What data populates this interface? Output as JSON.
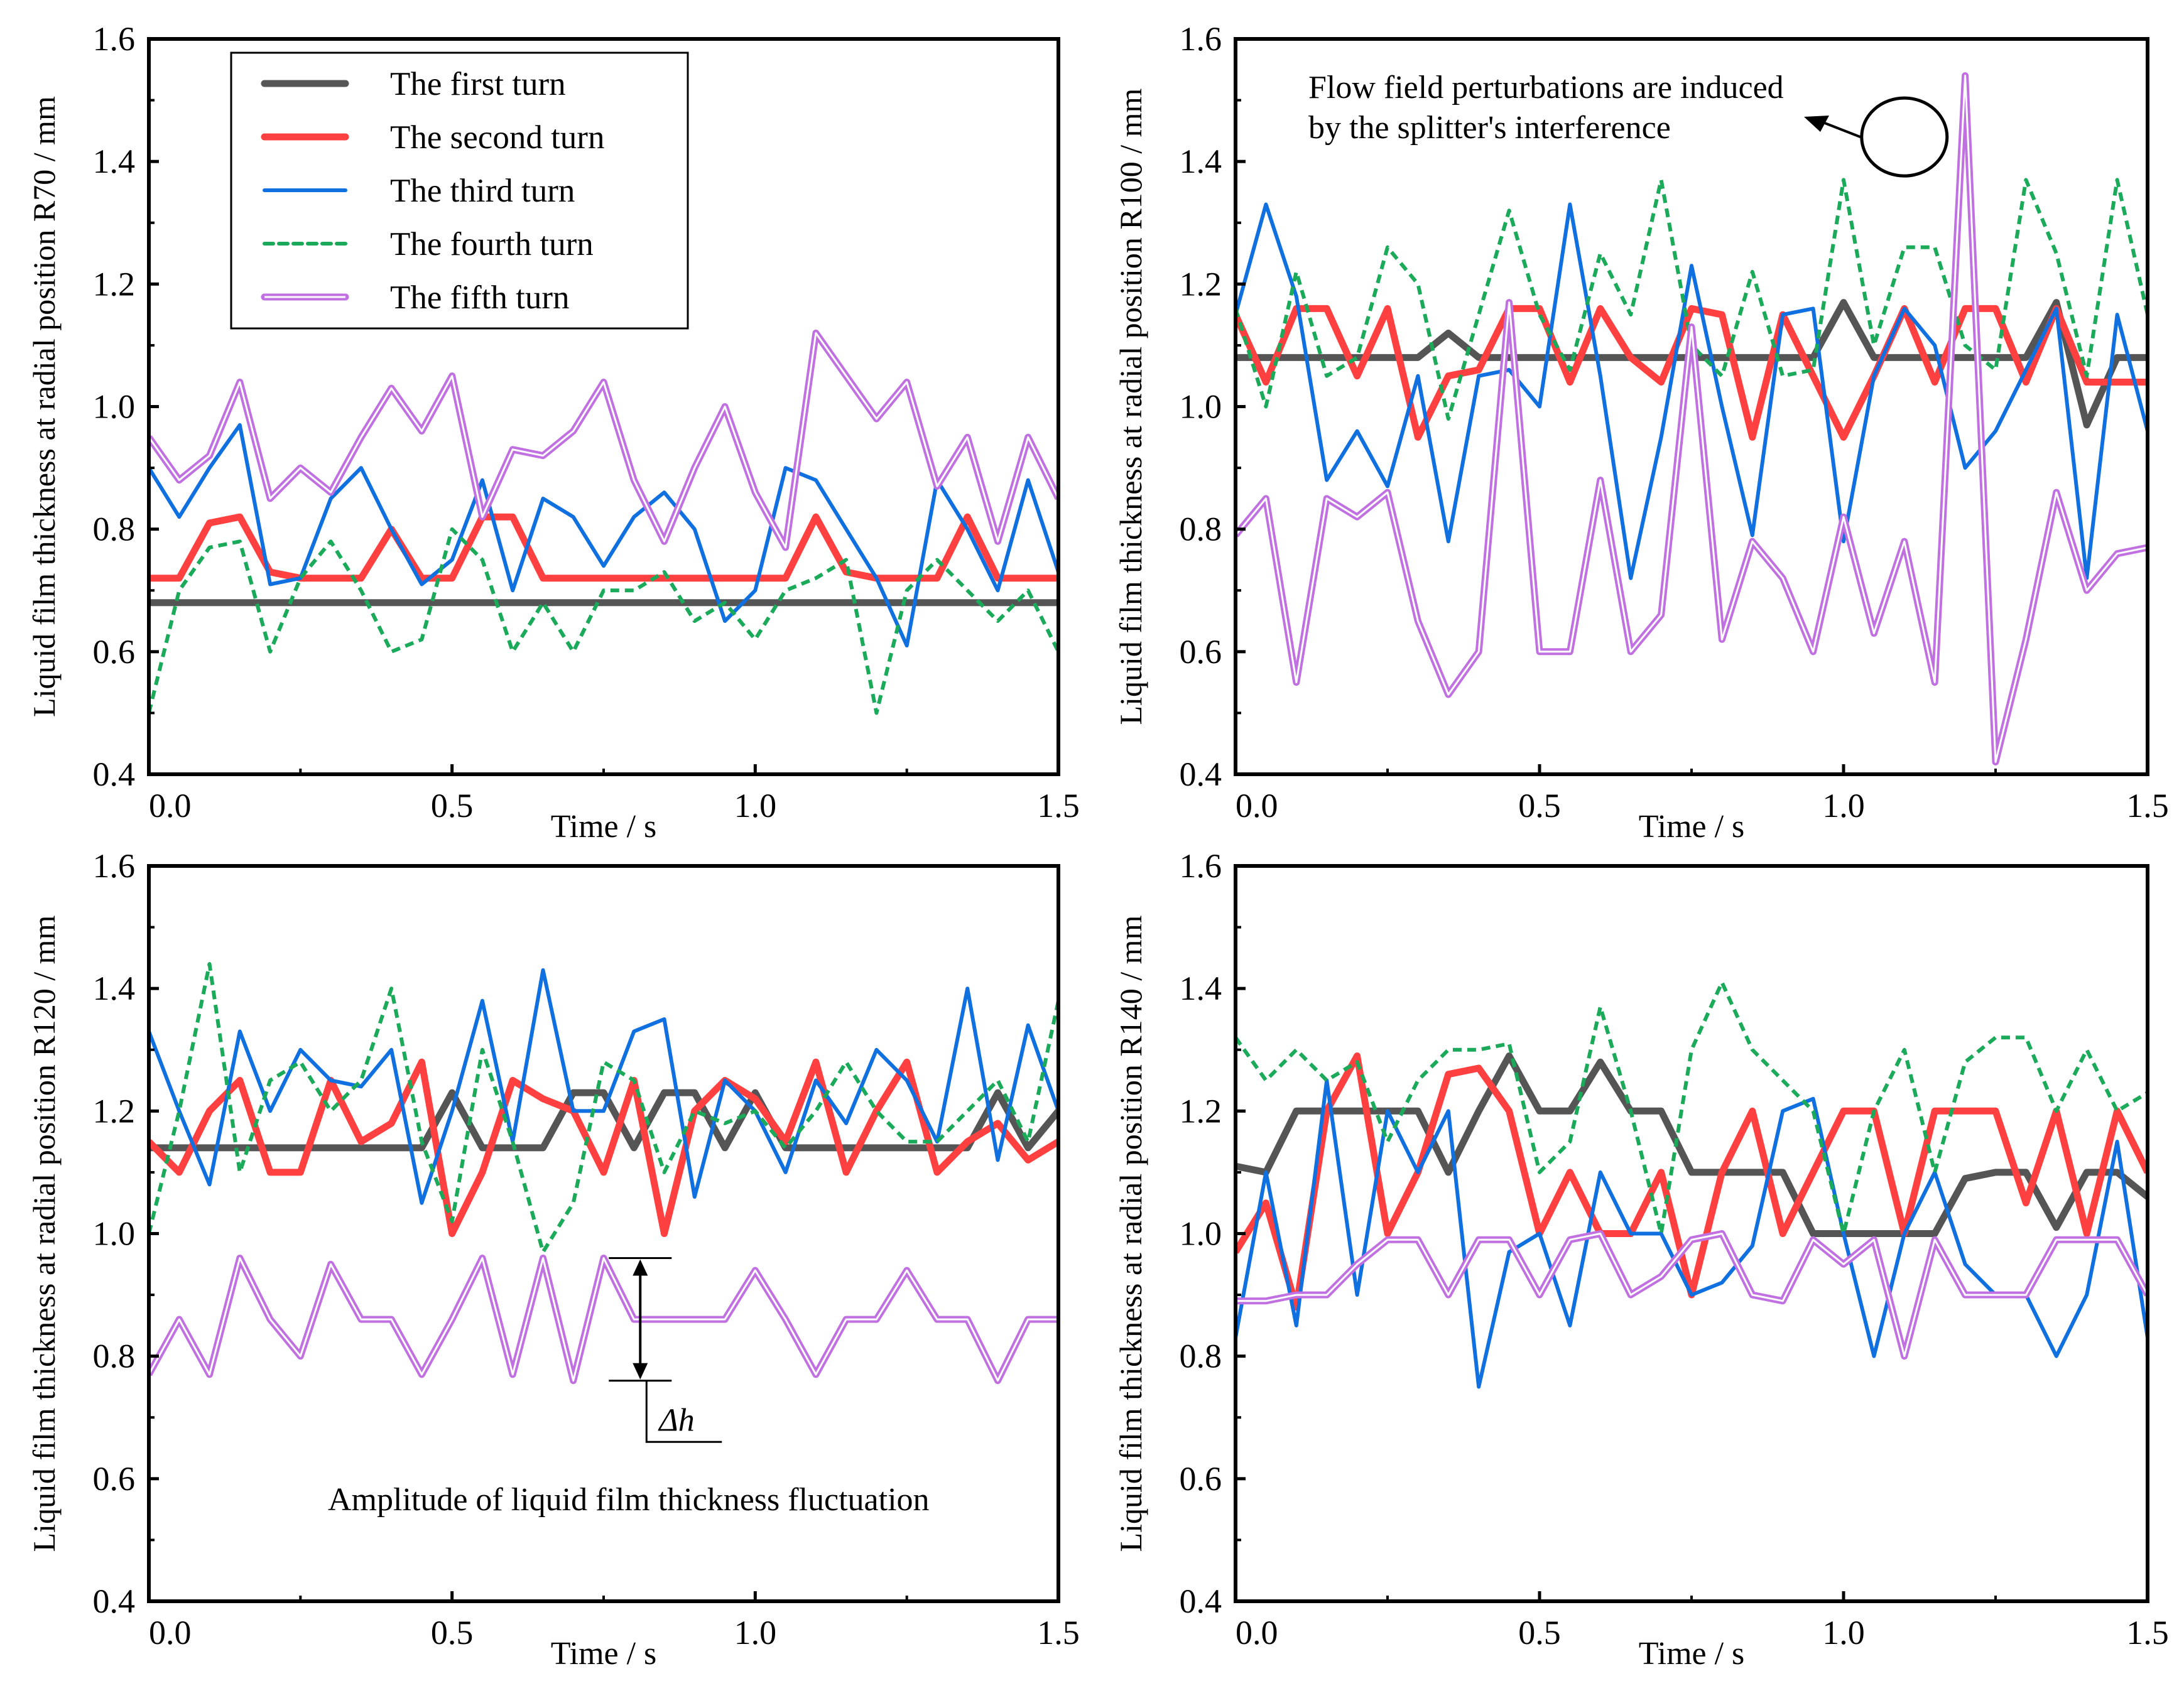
{
  "chart_data": [
    {
      "type": "line",
      "title": "",
      "xlabel": "Time / s",
      "ylabel": "Liquid film thickness at radial position R70 / mm",
      "xlim": [
        0,
        1.5
      ],
      "ylim": [
        0.4,
        1.6
      ],
      "xticks": [
        "0.0",
        "0.5",
        "1.0",
        "1.5"
      ],
      "yticks": [
        "0.4",
        "0.6",
        "0.8",
        "1.0",
        "1.2",
        "1.4",
        "1.6"
      ],
      "grid": false,
      "legend": {
        "placement": "top-left",
        "entries": [
          "The first turn",
          "The second turn",
          "The third turn",
          "The fourth turn",
          "The fifth turn"
        ]
      },
      "x_step": 0.05,
      "series": [
        {
          "name": "The first turn",
          "color": "#555555",
          "values": [
            0.68,
            0.68,
            0.68,
            0.68,
            0.68,
            0.68,
            0.68,
            0.68,
            0.68,
            0.68,
            0.68,
            0.68,
            0.68,
            0.68,
            0.68,
            0.68,
            0.68,
            0.68,
            0.68,
            0.68,
            0.68,
            0.68,
            0.68,
            0.68,
            0.68,
            0.68,
            0.68,
            0.68,
            0.68,
            0.68,
            0.68
          ]
        },
        {
          "name": "The second turn",
          "color": "#ff4040",
          "values": [
            0.72,
            0.72,
            0.81,
            0.82,
            0.73,
            0.72,
            0.72,
            0.72,
            0.8,
            0.72,
            0.72,
            0.82,
            0.82,
            0.72,
            0.72,
            0.72,
            0.72,
            0.72,
            0.72,
            0.72,
            0.72,
            0.72,
            0.82,
            0.73,
            0.72,
            0.72,
            0.72,
            0.82,
            0.72,
            0.72,
            0.72
          ]
        },
        {
          "name": "The third turn",
          "color": "#1070e0",
          "values": [
            0.9,
            0.82,
            0.9,
            0.97,
            0.71,
            0.72,
            0.85,
            0.9,
            0.8,
            0.71,
            0.75,
            0.88,
            0.7,
            0.85,
            0.82,
            0.74,
            0.82,
            0.86,
            0.8,
            0.65,
            0.7,
            0.9,
            0.88,
            0.8,
            0.72,
            0.61,
            0.88,
            0.8,
            0.7,
            0.88,
            0.73
          ]
        },
        {
          "name": "The fourth turn",
          "color": "#1aaa5a",
          "values": [
            0.5,
            0.7,
            0.77,
            0.78,
            0.6,
            0.72,
            0.78,
            0.7,
            0.6,
            0.62,
            0.8,
            0.75,
            0.6,
            0.68,
            0.6,
            0.7,
            0.7,
            0.73,
            0.65,
            0.68,
            0.62,
            0.7,
            0.72,
            0.75,
            0.5,
            0.7,
            0.75,
            0.7,
            0.65,
            0.7,
            0.6
          ]
        },
        {
          "name": "The fifth turn",
          "color": "#c070e0",
          "values": [
            0.95,
            0.88,
            0.92,
            1.04,
            0.85,
            0.9,
            0.86,
            0.95,
            1.03,
            0.96,
            1.05,
            0.82,
            0.93,
            0.92,
            0.96,
            1.04,
            0.88,
            0.78,
            0.9,
            1.0,
            0.86,
            0.77,
            1.12,
            1.05,
            0.98,
            1.04,
            0.87,
            0.95,
            0.78,
            0.95,
            0.85
          ]
        }
      ]
    },
    {
      "type": "line",
      "title": "",
      "xlabel": "Time / s",
      "ylabel": "Liquid film thickness at radial position R100 / mm",
      "xlim": [
        0,
        1.5
      ],
      "ylim": [
        0.4,
        1.6
      ],
      "xticks": [
        "0.0",
        "0.5",
        "1.0",
        "1.5"
      ],
      "yticks": [
        "0.4",
        "0.6",
        "0.8",
        "1.0",
        "1.2",
        "1.4",
        "1.6"
      ],
      "grid": false,
      "annotations": [
        "Flow field perturbations are induced",
        "by the splitter's interference"
      ],
      "x_step": 0.05,
      "series": [
        {
          "name": "The first turn",
          "color": "#555555",
          "values": [
            1.08,
            1.08,
            1.08,
            1.08,
            1.08,
            1.08,
            1.08,
            1.12,
            1.08,
            1.08,
            1.08,
            1.08,
            1.08,
            1.08,
            1.08,
            1.08,
            1.08,
            1.08,
            1.08,
            1.08,
            1.17,
            1.08,
            1.08,
            1.08,
            1.08,
            1.08,
            1.08,
            1.17,
            0.97,
            1.08,
            1.08
          ]
        },
        {
          "name": "The second turn",
          "color": "#ff4040",
          "values": [
            1.15,
            1.04,
            1.16,
            1.16,
            1.05,
            1.16,
            0.95,
            1.05,
            1.06,
            1.16,
            1.16,
            1.04,
            1.16,
            1.08,
            1.04,
            1.16,
            1.15,
            0.95,
            1.15,
            1.05,
            0.95,
            1.05,
            1.16,
            1.04,
            1.16,
            1.16,
            1.04,
            1.16,
            1.04,
            1.04,
            1.04
          ]
        },
        {
          "name": "The third turn",
          "color": "#1070e0",
          "values": [
            1.15,
            1.33,
            1.18,
            0.88,
            0.96,
            0.87,
            1.05,
            0.78,
            1.05,
            1.06,
            1.0,
            1.33,
            1.05,
            0.72,
            0.95,
            1.23,
            1.0,
            0.79,
            1.15,
            1.16,
            0.78,
            1.05,
            1.16,
            1.1,
            0.9,
            0.96,
            1.06,
            1.16,
            0.72,
            1.15,
            0.96
          ]
        },
        {
          "name": "The fourth turn",
          "color": "#1aaa5a",
          "values": [
            1.16,
            1.0,
            1.22,
            1.05,
            1.08,
            1.26,
            1.2,
            0.98,
            1.15,
            1.32,
            1.15,
            1.06,
            1.25,
            1.15,
            1.37,
            1.1,
            1.05,
            1.22,
            1.05,
            1.06,
            1.37,
            1.1,
            1.26,
            1.26,
            1.1,
            1.06,
            1.37,
            1.25,
            1.05,
            1.37,
            1.15
          ]
        },
        {
          "name": "The fifth turn",
          "color": "#c070e0",
          "values": [
            0.79,
            0.85,
            0.55,
            0.85,
            0.82,
            0.86,
            0.65,
            0.53,
            0.6,
            1.17,
            0.6,
            0.6,
            0.88,
            0.6,
            0.66,
            1.13,
            0.62,
            0.78,
            0.72,
            0.6,
            0.82,
            0.63,
            0.78,
            0.55,
            1.54,
            0.42,
            0.62,
            0.86,
            0.7,
            0.76,
            0.77
          ]
        }
      ]
    },
    {
      "type": "line",
      "title": "",
      "xlabel": "Time / s",
      "ylabel": "Liquid film thickness at radial position R120 / mm",
      "xlim": [
        0,
        1.5
      ],
      "ylim": [
        0.4,
        1.6
      ],
      "xticks": [
        "0.0",
        "0.5",
        "1.0",
        "1.5"
      ],
      "yticks": [
        "0.4",
        "0.6",
        "0.8",
        "1.0",
        "1.2",
        "1.4",
        "1.6"
      ],
      "grid": false,
      "annotations": [
        "Δh",
        "Amplitude of liquid film thickness fluctuation"
      ],
      "x_step": 0.05,
      "series": [
        {
          "name": "The first turn",
          "color": "#555555",
          "values": [
            1.14,
            1.14,
            1.14,
            1.14,
            1.14,
            1.14,
            1.14,
            1.14,
            1.14,
            1.14,
            1.23,
            1.14,
            1.14,
            1.14,
            1.23,
            1.23,
            1.14,
            1.23,
            1.23,
            1.14,
            1.23,
            1.14,
            1.14,
            1.14,
            1.14,
            1.14,
            1.14,
            1.14,
            1.23,
            1.14,
            1.2
          ]
        },
        {
          "name": "The second turn",
          "color": "#ff4040",
          "values": [
            1.15,
            1.1,
            1.2,
            1.25,
            1.1,
            1.1,
            1.25,
            1.15,
            1.18,
            1.28,
            1.0,
            1.1,
            1.25,
            1.22,
            1.2,
            1.1,
            1.25,
            1.0,
            1.2,
            1.25,
            1.22,
            1.15,
            1.28,
            1.1,
            1.2,
            1.28,
            1.1,
            1.15,
            1.18,
            1.12,
            1.15
          ]
        },
        {
          "name": "The third turn",
          "color": "#1070e0",
          "values": [
            1.33,
            1.2,
            1.08,
            1.33,
            1.2,
            1.3,
            1.25,
            1.24,
            1.3,
            1.05,
            1.2,
            1.38,
            1.15,
            1.43,
            1.2,
            1.2,
            1.33,
            1.35,
            1.06,
            1.25,
            1.2,
            1.1,
            1.25,
            1.18,
            1.3,
            1.25,
            1.15,
            1.4,
            1.12,
            1.34,
            1.2
          ]
        },
        {
          "name": "The fourth turn",
          "color": "#1aaa5a",
          "values": [
            1.0,
            1.2,
            1.44,
            1.1,
            1.25,
            1.28,
            1.2,
            1.25,
            1.4,
            1.15,
            1.02,
            1.3,
            1.15,
            0.97,
            1.05,
            1.28,
            1.25,
            1.1,
            1.2,
            1.18,
            1.2,
            1.14,
            1.2,
            1.28,
            1.2,
            1.15,
            1.15,
            1.2,
            1.25,
            1.15,
            1.38
          ]
        },
        {
          "name": "The fifth turn",
          "color": "#c070e0",
          "values": [
            0.77,
            0.86,
            0.77,
            0.96,
            0.86,
            0.8,
            0.95,
            0.86,
            0.86,
            0.77,
            0.86,
            0.96,
            0.77,
            0.96,
            0.76,
            0.96,
            0.86,
            0.86,
            0.86,
            0.86,
            0.94,
            0.86,
            0.77,
            0.86,
            0.86,
            0.94,
            0.86,
            0.86,
            0.76,
            0.86,
            0.86
          ]
        }
      ]
    },
    {
      "type": "line",
      "title": "",
      "xlabel": "Time / s",
      "ylabel": "Liquid film thickness at radial position R140 / mm",
      "xlim": [
        0,
        1.5
      ],
      "ylim": [
        0.4,
        1.6
      ],
      "xticks": [
        "0.0",
        "0.5",
        "1.0",
        "1.5"
      ],
      "yticks": [
        "0.4",
        "0.6",
        "0.8",
        "1.0",
        "1.2",
        "1.4",
        "1.6"
      ],
      "grid": false,
      "x_step": 0.05,
      "series": [
        {
          "name": "The first turn",
          "color": "#555555",
          "values": [
            1.11,
            1.1,
            1.2,
            1.2,
            1.2,
            1.2,
            1.2,
            1.1,
            1.2,
            1.29,
            1.2,
            1.2,
            1.28,
            1.2,
            1.2,
            1.1,
            1.1,
            1.1,
            1.1,
            1.0,
            1.0,
            1.0,
            1.0,
            1.0,
            1.09,
            1.1,
            1.1,
            1.01,
            1.1,
            1.1,
            1.06
          ]
        },
        {
          "name": "The second turn",
          "color": "#ff4040",
          "values": [
            0.97,
            1.05,
            0.88,
            1.2,
            1.29,
            1.0,
            1.1,
            1.26,
            1.27,
            1.2,
            1.0,
            1.1,
            1.0,
            1.0,
            1.1,
            0.9,
            1.1,
            1.2,
            1.0,
            1.1,
            1.2,
            1.2,
            1.0,
            1.2,
            1.2,
            1.2,
            1.05,
            1.2,
            1.0,
            1.2,
            1.1
          ]
        },
        {
          "name": "The third turn",
          "color": "#1070e0",
          "values": [
            0.83,
            1.1,
            0.85,
            1.25,
            0.9,
            1.2,
            1.1,
            1.2,
            0.75,
            0.97,
            1.0,
            0.85,
            1.1,
            1.0,
            1.0,
            0.9,
            0.92,
            0.98,
            1.2,
            1.22,
            1.0,
            0.8,
            1.0,
            1.1,
            0.95,
            0.9,
            0.9,
            0.8,
            0.9,
            1.15,
            0.83
          ]
        },
        {
          "name": "The fourth turn",
          "color": "#1aaa5a",
          "values": [
            1.32,
            1.25,
            1.3,
            1.25,
            1.28,
            1.15,
            1.25,
            1.3,
            1.3,
            1.31,
            1.1,
            1.15,
            1.37,
            1.2,
            1.0,
            1.3,
            1.41,
            1.3,
            1.25,
            1.2,
            1.0,
            1.2,
            1.3,
            1.1,
            1.28,
            1.32,
            1.32,
            1.2,
            1.3,
            1.2,
            1.23
          ]
        },
        {
          "name": "The fifth turn",
          "color": "#c070e0",
          "values": [
            0.89,
            0.89,
            0.9,
            0.9,
            0.95,
            0.99,
            0.99,
            0.9,
            0.99,
            0.99,
            0.9,
            0.99,
            1.0,
            0.9,
            0.93,
            0.99,
            1.0,
            0.9,
            0.89,
            0.99,
            0.95,
            0.99,
            0.8,
            0.99,
            0.9,
            0.9,
            0.9,
            0.99,
            0.99,
            0.99,
            0.9
          ]
        }
      ]
    }
  ]
}
